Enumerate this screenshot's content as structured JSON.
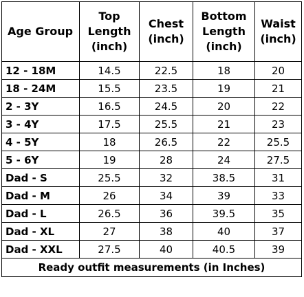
{
  "table": {
    "headers": {
      "age_group": "Age Group",
      "top_length": [
        "Top",
        "Length",
        "(inch)"
      ],
      "chest": [
        "Chest",
        "(inch)"
      ],
      "bottom_length": [
        "Bottom",
        "Length",
        "(inch)"
      ],
      "waist": [
        "Waist",
        "(inch)"
      ]
    },
    "rows": [
      {
        "age_group": "12 - 18M",
        "top_length": "14.5",
        "chest": "22.5",
        "bottom_length": "18",
        "waist": "20"
      },
      {
        "age_group": "18 - 24M",
        "top_length": "15.5",
        "chest": "23.5",
        "bottom_length": "19",
        "waist": "21"
      },
      {
        "age_group": "2 - 3Y",
        "top_length": "16.5",
        "chest": "24.5",
        "bottom_length": "20",
        "waist": "22"
      },
      {
        "age_group": "3 - 4Y",
        "top_length": "17.5",
        "chest": "25.5",
        "bottom_length": "21",
        "waist": "23"
      },
      {
        "age_group": "4 - 5Y",
        "top_length": "18",
        "chest": "26.5",
        "bottom_length": "22",
        "waist": "25.5"
      },
      {
        "age_group": "5 - 6Y",
        "top_length": "19",
        "chest": "28",
        "bottom_length": "24",
        "waist": "27.5"
      },
      {
        "age_group": "Dad - S",
        "top_length": "25.5",
        "chest": "32",
        "bottom_length": "38.5",
        "waist": "31"
      },
      {
        "age_group": "Dad - M",
        "top_length": "26",
        "chest": "34",
        "bottom_length": "39",
        "waist": "33"
      },
      {
        "age_group": "Dad - L",
        "top_length": "26.5",
        "chest": "36",
        "bottom_length": "39.5",
        "waist": "35"
      },
      {
        "age_group": "Dad - XL",
        "top_length": "27",
        "chest": "38",
        "bottom_length": "40",
        "waist": "37"
      },
      {
        "age_group": "Dad - XXL",
        "top_length": "27.5",
        "chest": "40",
        "bottom_length": "40.5",
        "waist": "39"
      }
    ],
    "caption": "Ready outfit measurements (in Inches)"
  }
}
